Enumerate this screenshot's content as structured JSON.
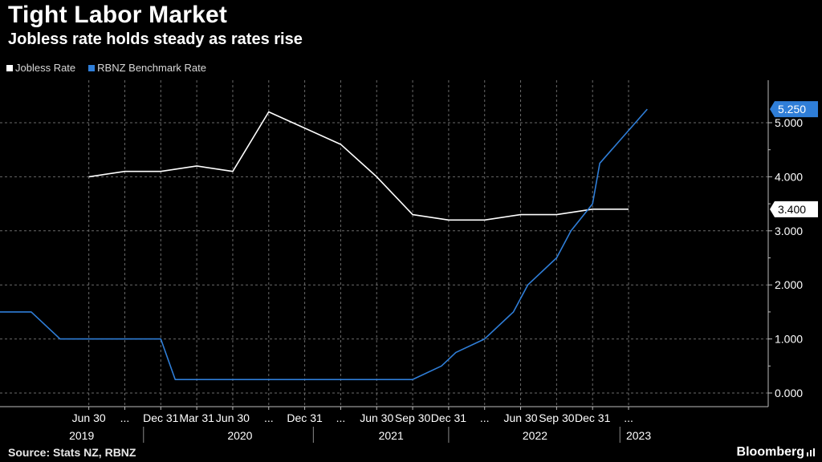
{
  "chart_data": {
    "type": "line",
    "title": "Tight Labor Market",
    "subtitle": "Jobless rate holds steady as rates rise",
    "source": "Source: Stats NZ, RBNZ",
    "brand": "Bloomberg",
    "ylim": [
      0,
      5.5
    ],
    "yticks": [
      "0.000",
      "1.000",
      "2.000",
      "3.000",
      "4.000",
      "5.000"
    ],
    "x_range": [
      2019.0,
      2023.45
    ],
    "xticks": [
      {
        "x": 2019.5,
        "label": "Jun 30"
      },
      {
        "x": 2019.75,
        "label": "..."
      },
      {
        "x": 2020.0,
        "label": "Dec 31"
      },
      {
        "x": 2020.25,
        "label": "Mar 31"
      },
      {
        "x": 2020.5,
        "label": "Jun 30"
      },
      {
        "x": 2020.75,
        "label": "..."
      },
      {
        "x": 2021.0,
        "label": "Dec 31"
      },
      {
        "x": 2021.25,
        "label": "..."
      },
      {
        "x": 2021.5,
        "label": "Jun 30"
      },
      {
        "x": 2021.75,
        "label": "Sep 30"
      },
      {
        "x": 2022.0,
        "label": "Dec 31"
      },
      {
        "x": 2022.25,
        "label": "..."
      },
      {
        "x": 2022.5,
        "label": "Jun 30"
      },
      {
        "x": 2022.75,
        "label": "Sep 30"
      },
      {
        "x": 2023.0,
        "label": "Dec 31"
      },
      {
        "x": 2023.25,
        "label": "..."
      }
    ],
    "year_labels": [
      {
        "x": 2019.45,
        "label": "2019",
        "sep": 2019.88
      },
      {
        "x": 2020.55,
        "label": "2020",
        "sep": 2021.06
      },
      {
        "x": 2021.6,
        "label": "2021",
        "sep": 2022.0
      },
      {
        "x": 2022.6,
        "label": "2022",
        "sep": 2023.19
      },
      {
        "x": 2023.32,
        "label": "2023",
        "sep": null
      }
    ],
    "series": [
      {
        "name": "Jobless Rate",
        "color": "#ffffff",
        "last_value": "3.400",
        "points": [
          [
            2019.5,
            4.0
          ],
          [
            2019.75,
            4.1
          ],
          [
            2020.0,
            4.1
          ],
          [
            2020.25,
            4.2
          ],
          [
            2020.5,
            4.1
          ],
          [
            2020.75,
            5.2
          ],
          [
            2021.0,
            4.9
          ],
          [
            2021.25,
            4.6
          ],
          [
            2021.5,
            4.0
          ],
          [
            2021.75,
            3.3
          ],
          [
            2022.0,
            3.2
          ],
          [
            2022.25,
            3.2
          ],
          [
            2022.5,
            3.3
          ],
          [
            2022.75,
            3.3
          ],
          [
            2023.0,
            3.4
          ],
          [
            2023.25,
            3.4
          ]
        ]
      },
      {
        "name": "RBNZ Benchmark Rate",
        "color": "#2f7ed8",
        "last_value": "5.250",
        "points": [
          [
            2019.0,
            1.5
          ],
          [
            2019.1,
            1.5
          ],
          [
            2019.3,
            1.0
          ],
          [
            2019.75,
            1.0
          ],
          [
            2019.95,
            1.0
          ],
          [
            2020.0,
            1.0
          ],
          [
            2020.1,
            0.25
          ],
          [
            2020.5,
            0.25
          ],
          [
            2021.0,
            0.25
          ],
          [
            2021.75,
            0.25
          ],
          [
            2021.95,
            0.5
          ],
          [
            2022.05,
            0.75
          ],
          [
            2022.25,
            1.0
          ],
          [
            2022.45,
            1.5
          ],
          [
            2022.55,
            2.0
          ],
          [
            2022.75,
            2.5
          ],
          [
            2022.85,
            3.0
          ],
          [
            2023.0,
            3.5
          ],
          [
            2023.05,
            4.25
          ],
          [
            2023.38,
            5.25
          ]
        ]
      }
    ]
  }
}
